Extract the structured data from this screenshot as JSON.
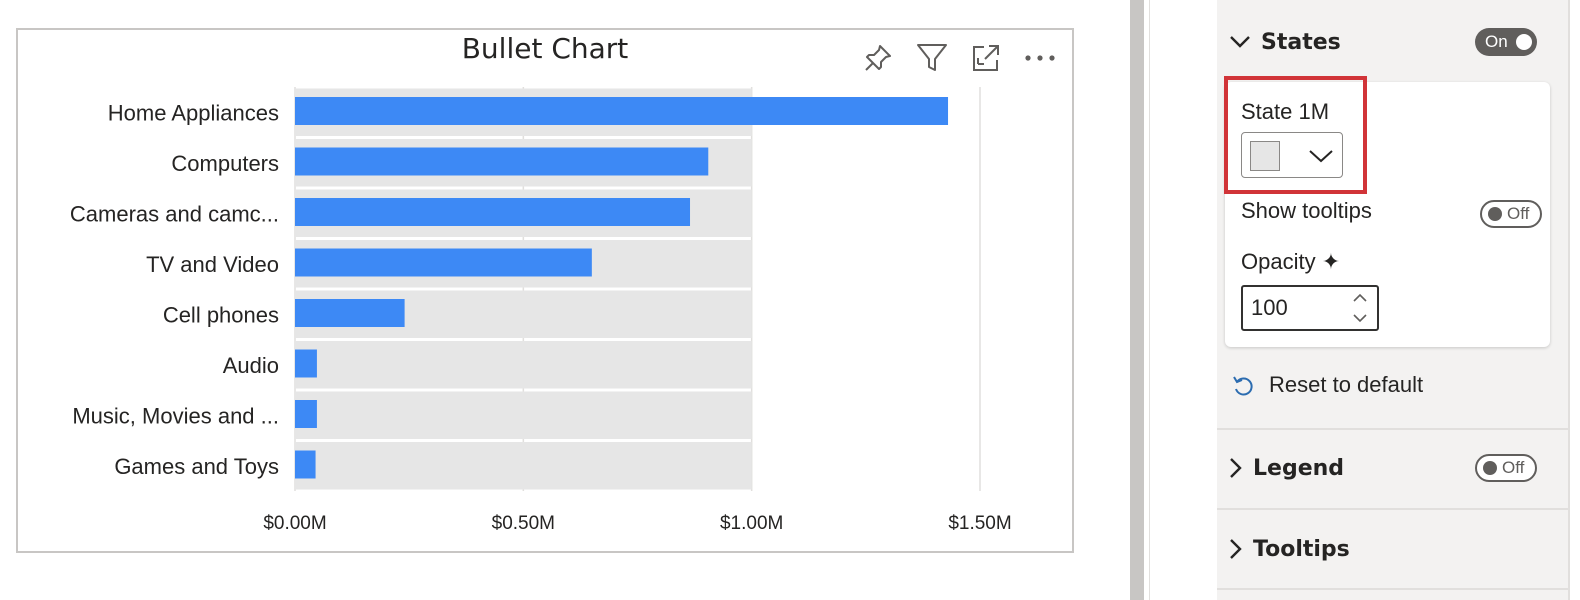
{
  "visual": {
    "title": "Bullet Chart",
    "tools": [
      {
        "name": "pin-icon"
      },
      {
        "name": "filter-icon"
      },
      {
        "name": "focus-mode-icon"
      },
      {
        "name": "more-options-icon"
      }
    ]
  },
  "chart_data": {
    "type": "bar",
    "orientation": "horizontal",
    "title": "Bullet Chart",
    "categories": [
      "Home Appliances",
      "Computers",
      "Cameras and camc...",
      "TV and Video",
      "Cell phones",
      "Audio",
      "Music, Movies and ...",
      "Games and Toys"
    ],
    "series": [
      {
        "values": [
          1.43,
          0.905,
          0.865,
          0.65,
          0.24,
          0.048,
          0.048,
          0.045
        ]
      }
    ],
    "target_range": [
      0,
      1.0
    ],
    "x_ticks": [
      "$0.00M",
      "$0.50M",
      "$1.00M",
      "$1.50M"
    ],
    "xlim": [
      0,
      1.5
    ],
    "grid": true,
    "colors": {
      "bar": "#3d89f5",
      "range": "#e6e6e6"
    }
  },
  "format_pane": {
    "states": {
      "title": "States",
      "toggle_label": "On"
    },
    "state_item_label": "State 1M",
    "state_color": "#e6e6e6",
    "show_tooltips": {
      "label": "Show tooltips",
      "toggle_label": "Off"
    },
    "opacity": {
      "label": "Opacity",
      "sparkle": "✦",
      "value": "100"
    },
    "reset_label": "Reset to default",
    "legend": {
      "title": "Legend",
      "toggle_label": "Off"
    },
    "tooltips": {
      "title": "Tooltips"
    }
  }
}
